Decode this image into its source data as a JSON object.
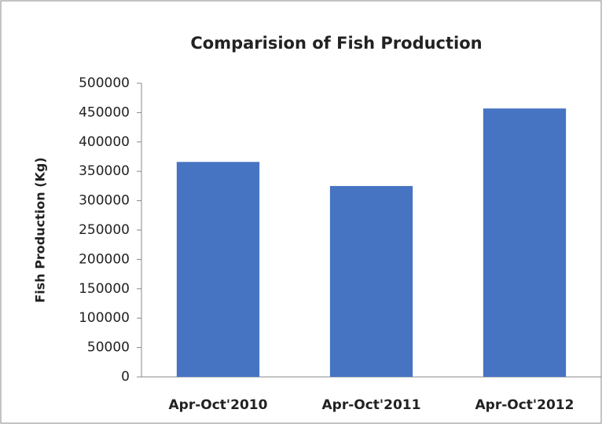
{
  "chart_data": {
    "type": "bar",
    "title": "Comparision of Fish Production",
    "y_label": "Fish Production (Kg)",
    "categories": [
      "Apr-Oct'2010",
      "Apr-Oct'2011",
      "Apr-Oct'2012"
    ],
    "values": [
      366000,
      325000,
      457000
    ],
    "color": "#4674c2",
    "ylim": [
      0,
      500000
    ],
    "yticks": [
      0,
      50000,
      100000,
      150000,
      200000,
      250000,
      300000,
      350000,
      400000,
      450000,
      500000
    ],
    "grid": false
  }
}
